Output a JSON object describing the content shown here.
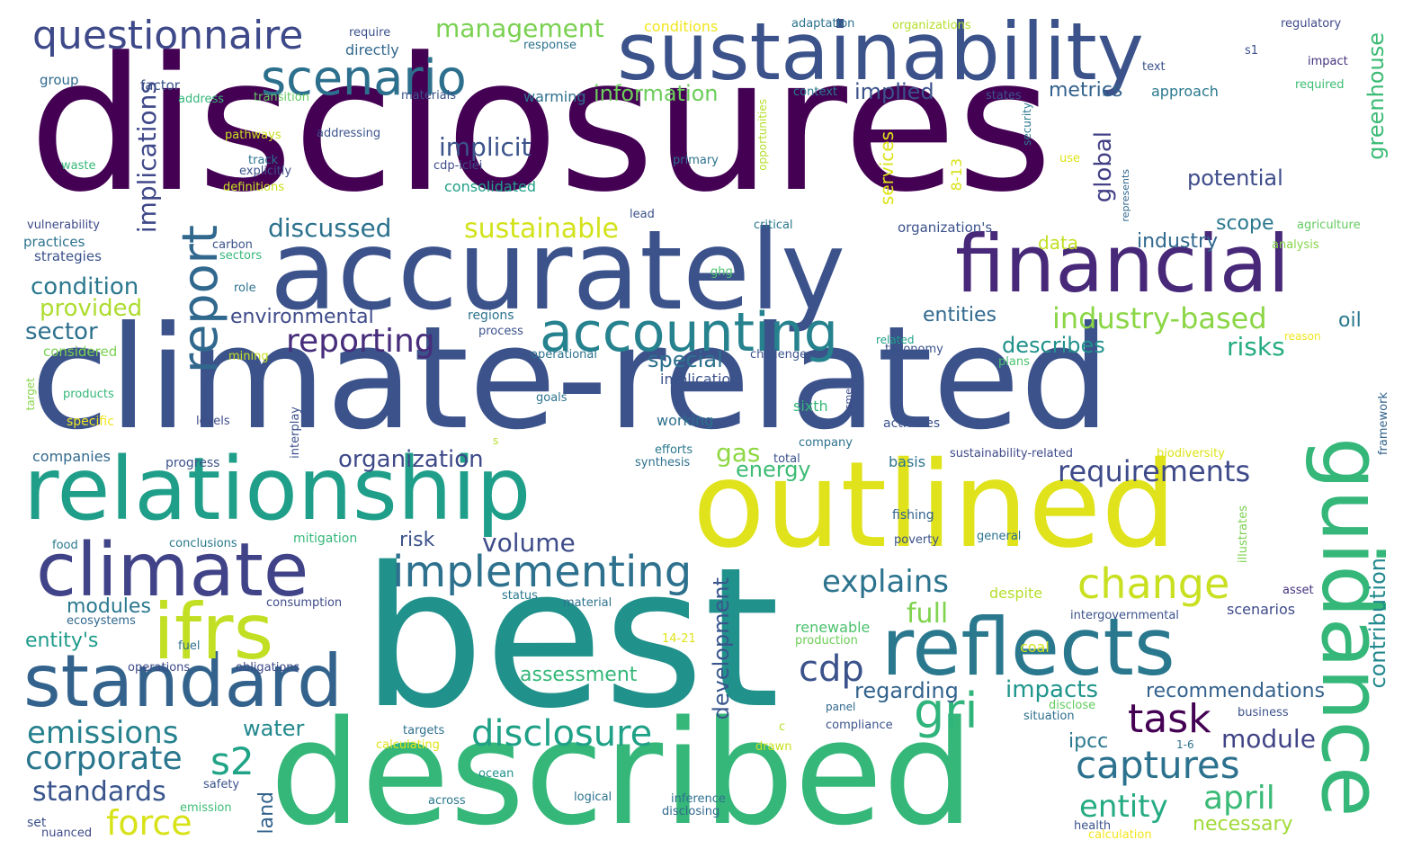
{
  "words": [
    {
      "text": "disclosures",
      "color": "#440154"
    },
    {
      "text": "climate-related",
      "color": "#3b528b"
    },
    {
      "text": "best",
      "color": "#21918c"
    },
    {
      "text": "described",
      "color": "#35b779"
    },
    {
      "text": "outlined",
      "color": "#e0e31b"
    },
    {
      "text": "accurately",
      "color": "#3b528b"
    },
    {
      "text": "sustainability",
      "color": "#3b528b"
    },
    {
      "text": "relationship",
      "color": "#1f9e89"
    },
    {
      "text": "financial",
      "color": "#482878"
    },
    {
      "text": "climate",
      "color": "#404387"
    },
    {
      "text": "reflects",
      "color": "#2a788e"
    },
    {
      "text": "guidance",
      "color": "#35b779"
    },
    {
      "text": "standard",
      "color": "#33638d"
    },
    {
      "text": "ifrs",
      "color": "#c2df23"
    },
    {
      "text": "accounting",
      "color": "#26828e"
    },
    {
      "text": "implementing",
      "color": "#2d718e"
    },
    {
      "text": "scenario",
      "color": "#2d708e"
    },
    {
      "text": "questionnaire",
      "color": "#3e4989"
    },
    {
      "text": "report",
      "color": "#31688e"
    },
    {
      "text": "change",
      "color": "#c8e020"
    },
    {
      "text": "disclosure",
      "color": "#1fa187"
    },
    {
      "text": "task",
      "color": "#440154"
    },
    {
      "text": "gri",
      "color": "#2fb47c"
    },
    {
      "text": "captures",
      "color": "#2c728e"
    },
    {
      "text": "force",
      "color": "#d8e219"
    },
    {
      "text": "corporate",
      "color": "#2a768e"
    },
    {
      "text": "emissions",
      "color": "#26818e"
    },
    {
      "text": "standards",
      "color": "#39558c"
    },
    {
      "text": "s2",
      "color": "#20a386"
    },
    {
      "text": "cdp",
      "color": "#3b528b"
    },
    {
      "text": "reporting",
      "color": "#472d7b"
    },
    {
      "text": "explains",
      "color": "#2c738e"
    },
    {
      "text": "requirements",
      "color": "#3e4a89"
    },
    {
      "text": "entity",
      "color": "#25ab82"
    },
    {
      "text": "april",
      "color": "#3aba76"
    },
    {
      "text": "module",
      "color": "#414487"
    },
    {
      "text": "industry-based",
      "color": "#8bd646"
    },
    {
      "text": "sustainable",
      "color": "#d2e21b"
    },
    {
      "text": "management",
      "color": "#7ad151"
    },
    {
      "text": "implicit",
      "color": "#3b528b"
    },
    {
      "text": "implications",
      "color": "#3f4889"
    },
    {
      "text": "discussed",
      "color": "#2c728e"
    },
    {
      "text": "condition",
      "color": "#2a788e"
    },
    {
      "text": "provided",
      "color": "#addc30"
    },
    {
      "text": "sector",
      "color": "#2d708e"
    },
    {
      "text": "volume",
      "color": "#3e4c8a"
    },
    {
      "text": "organization",
      "color": "#3e4a89"
    },
    {
      "text": "environmental",
      "color": "#3e4a89"
    },
    {
      "text": "regarding",
      "color": "#33638d"
    },
    {
      "text": "impacts",
      "color": "#1f958b"
    },
    {
      "text": "recommendations",
      "color": "#34618d"
    },
    {
      "text": "development",
      "color": "#39568c"
    },
    {
      "text": "contribution",
      "color": "#23898e"
    },
    {
      "text": "greenhouse",
      "color": "#3cbb75"
    },
    {
      "text": "global",
      "color": "#424086"
    },
    {
      "text": "potential",
      "color": "#3e4c8a"
    },
    {
      "text": "industry",
      "color": "#31688e"
    },
    {
      "text": "scope",
      "color": "#2a788e"
    },
    {
      "text": "metrics",
      "color": "#33628d"
    },
    {
      "text": "information",
      "color": "#6ccd5a"
    },
    {
      "text": "implied",
      "color": "#3b528b"
    },
    {
      "text": "entities",
      "color": "#31688e"
    },
    {
      "text": "describes",
      "color": "#21918c"
    },
    {
      "text": "risks",
      "color": "#25ac82"
    },
    {
      "text": "special",
      "color": "#2d718e"
    },
    {
      "text": "energy",
      "color": "#3dbc74"
    },
    {
      "text": "gas",
      "color": "#8fd744"
    },
    {
      "text": "risk",
      "color": "#3b528b"
    },
    {
      "text": "full",
      "color": "#7fd34e"
    },
    {
      "text": "assessment",
      "color": "#35b779"
    },
    {
      "text": "water",
      "color": "#23898e"
    },
    {
      "text": "necessary",
      "color": "#a0da39"
    },
    {
      "text": "ipcc",
      "color": "#2a788e"
    },
    {
      "text": "land",
      "color": "#33638d"
    },
    {
      "text": "modules",
      "color": "#2a788e"
    },
    {
      "text": "entity's",
      "color": "#1e9b8a"
    },
    {
      "text": "services",
      "color": "#dde318"
    },
    {
      "text": "oil",
      "color": "#2a788e"
    },
    {
      "text": "data",
      "color": "#c2df23"
    },
    {
      "text": "working",
      "color": "#2d708e"
    },
    {
      "text": "implication",
      "color": "#3b528b"
    },
    {
      "text": "consolidated",
      "color": "#1fa088"
    },
    {
      "text": "directly",
      "color": "#31688e"
    },
    {
      "text": "8-13",
      "color": "#d8e219"
    },
    {
      "text": "conditions",
      "color": "#f1e51d"
    },
    {
      "text": "warming",
      "color": "#2d708e"
    },
    {
      "text": "approach",
      "color": "#2a788e"
    },
    {
      "text": "sixth",
      "color": "#35b779"
    },
    {
      "text": "scenarios",
      "color": "#3e4a89"
    },
    {
      "text": "basis",
      "color": "#2c738e"
    },
    {
      "text": "despite",
      "color": "#b5de2b"
    },
    {
      "text": "coal",
      "color": "#d2e21b"
    },
    {
      "text": "renewable",
      "color": "#4ac16d"
    },
    {
      "text": "production",
      "color": "#6ece58"
    },
    {
      "text": "fishing",
      "color": "#33638d"
    },
    {
      "text": "poverty",
      "color": "#3b528b"
    },
    {
      "text": "general",
      "color": "#2c728e"
    },
    {
      "text": "activities",
      "color": "#3b528b"
    },
    {
      "text": "sustainability-related",
      "color": "#3e4a89"
    },
    {
      "text": "biodiversity",
      "color": "#dde318"
    },
    {
      "text": "intergovernmental",
      "color": "#3b528b"
    },
    {
      "text": "framework",
      "color": "#33638d"
    },
    {
      "text": "illustrates",
      "color": "#7ad151"
    },
    {
      "text": "asset",
      "color": "#46337f"
    },
    {
      "text": "business",
      "color": "#3b528b"
    },
    {
      "text": "health",
      "color": "#3b528b"
    },
    {
      "text": "calculation",
      "color": "#f1e51d"
    },
    {
      "text": "situation",
      "color": "#2d708e"
    },
    {
      "text": "disclose",
      "color": "#63cb5f"
    },
    {
      "text": "1-6",
      "color": "#2c728e"
    },
    {
      "text": "compliance",
      "color": "#3b528b"
    },
    {
      "text": "panel",
      "color": "#31688e"
    },
    {
      "text": "drawn",
      "color": "#c8e020"
    },
    {
      "text": "c",
      "color": "#b5de2b"
    },
    {
      "text": "inference",
      "color": "#2d708e"
    },
    {
      "text": "disclosing",
      "color": "#31688e"
    },
    {
      "text": "logical",
      "color": "#2c728e"
    },
    {
      "text": "across",
      "color": "#2a788e"
    },
    {
      "text": "ocean",
      "color": "#21918c"
    },
    {
      "text": "targets",
      "color": "#2d708e"
    },
    {
      "text": "calculating",
      "color": "#e0e31b"
    },
    {
      "text": "emission",
      "color": "#3dbc74"
    },
    {
      "text": "safety",
      "color": "#3b528b"
    },
    {
      "text": "set",
      "color": "#3b528b"
    },
    {
      "text": "nuanced",
      "color": "#3e4a89"
    },
    {
      "text": "operations",
      "color": "#3e4a89"
    },
    {
      "text": "obligations",
      "color": "#3e4a89"
    },
    {
      "text": "fuel",
      "color": "#2d708e"
    },
    {
      "text": "ecosystems",
      "color": "#31688e"
    },
    {
      "text": "consumption",
      "color": "#3e4c8a"
    },
    {
      "text": "status",
      "color": "#2a788e"
    },
    {
      "text": "material",
      "color": "#2c728e"
    },
    {
      "text": "14-21",
      "color": "#e0e31b"
    },
    {
      "text": "food",
      "color": "#2a788e"
    },
    {
      "text": "conclusions",
      "color": "#2a788e"
    },
    {
      "text": "mitigation",
      "color": "#35b779"
    },
    {
      "text": "companies",
      "color": "#31688e"
    },
    {
      "text": "progress",
      "color": "#3b528b"
    },
    {
      "text": "interplay",
      "color": "#3b528b"
    },
    {
      "text": "efforts",
      "color": "#2a788e"
    },
    {
      "text": "synthesis",
      "color": "#2d708e"
    },
    {
      "text": "total",
      "color": "#3b528b"
    },
    {
      "text": "company",
      "color": "#2c728e"
    },
    {
      "text": "s",
      "color": "#b5de2b"
    },
    {
      "text": "levels",
      "color": "#3e4a89"
    },
    {
      "text": "goals",
      "color": "#2c728e"
    },
    {
      "text": "sme",
      "color": "#3e4a89"
    },
    {
      "text": "specific",
      "color": "#f1e51d"
    },
    {
      "text": "products",
      "color": "#35b779"
    },
    {
      "text": "target",
      "color": "#86d549"
    },
    {
      "text": "mining",
      "color": "#c8e020"
    },
    {
      "text": "considered",
      "color": "#7ad151"
    },
    {
      "text": "process",
      "color": "#3b528b"
    },
    {
      "text": "regions",
      "color": "#2c728e"
    },
    {
      "text": "operational",
      "color": "#2c728e"
    },
    {
      "text": "challenges",
      "color": "#3b528b"
    },
    {
      "text": "related",
      "color": "#1fa088"
    },
    {
      "text": "taxonomy",
      "color": "#3b528b"
    },
    {
      "text": "plans",
      "color": "#4ac16d"
    },
    {
      "text": "reason",
      "color": "#f1e51d"
    },
    {
      "text": "analysis",
      "color": "#86d549"
    },
    {
      "text": "agriculture",
      "color": "#63cb5f"
    },
    {
      "text": "represents",
      "color": "#31688e"
    },
    {
      "text": "use",
      "color": "#dde318"
    },
    {
      "text": "security",
      "color": "#2a788e"
    },
    {
      "text": "organization's",
      "color": "#3b528b"
    },
    {
      "text": "critical",
      "color": "#2a788e"
    },
    {
      "text": "lead",
      "color": "#3b528b"
    },
    {
      "text": "ghg",
      "color": "#4ac16d"
    },
    {
      "text": "role",
      "color": "#2c728e"
    },
    {
      "text": "carbon",
      "color": "#3b528b"
    },
    {
      "text": "sectors",
      "color": "#35b779"
    },
    {
      "text": "strategies",
      "color": "#3b528b"
    },
    {
      "text": "practices",
      "color": "#2c728e"
    },
    {
      "text": "vulnerability",
      "color": "#3e4a89"
    },
    {
      "text": "definitions",
      "color": "#c8e020"
    },
    {
      "text": "waste",
      "color": "#35b779"
    },
    {
      "text": "pathways",
      "color": "#c8e020"
    },
    {
      "text": "addressing",
      "color": "#3b528b"
    },
    {
      "text": "track",
      "color": "#2c728e"
    },
    {
      "text": "explicitly",
      "color": "#3b528b"
    },
    {
      "text": "cdp-iclei",
      "color": "#3e4a89"
    },
    {
      "text": "primary",
      "color": "#2c728e"
    },
    {
      "text": "opportunities",
      "color": "#b5de2b"
    },
    {
      "text": "address",
      "color": "#35b779"
    },
    {
      "text": "transition",
      "color": "#63cb5f"
    },
    {
      "text": "materials",
      "color": "#3b528b"
    },
    {
      "text": "factor",
      "color": "#3b528b"
    },
    {
      "text": "group",
      "color": "#31688e"
    },
    {
      "text": "require",
      "color": "#3b528b"
    },
    {
      "text": "response",
      "color": "#2c728e"
    },
    {
      "text": "adaptation",
      "color": "#2c728e"
    },
    {
      "text": "organizations",
      "color": "#b5de2b"
    },
    {
      "text": "context",
      "color": "#2a788e"
    },
    {
      "text": "states",
      "color": "#3b528b"
    },
    {
      "text": "text",
      "color": "#3b528b"
    },
    {
      "text": "s1",
      "color": "#3b528b"
    },
    {
      "text": "impact",
      "color": "#46337f"
    },
    {
      "text": "required",
      "color": "#3dbc74"
    },
    {
      "text": "regulatory",
      "color": "#3e4a89"
    }
  ]
}
